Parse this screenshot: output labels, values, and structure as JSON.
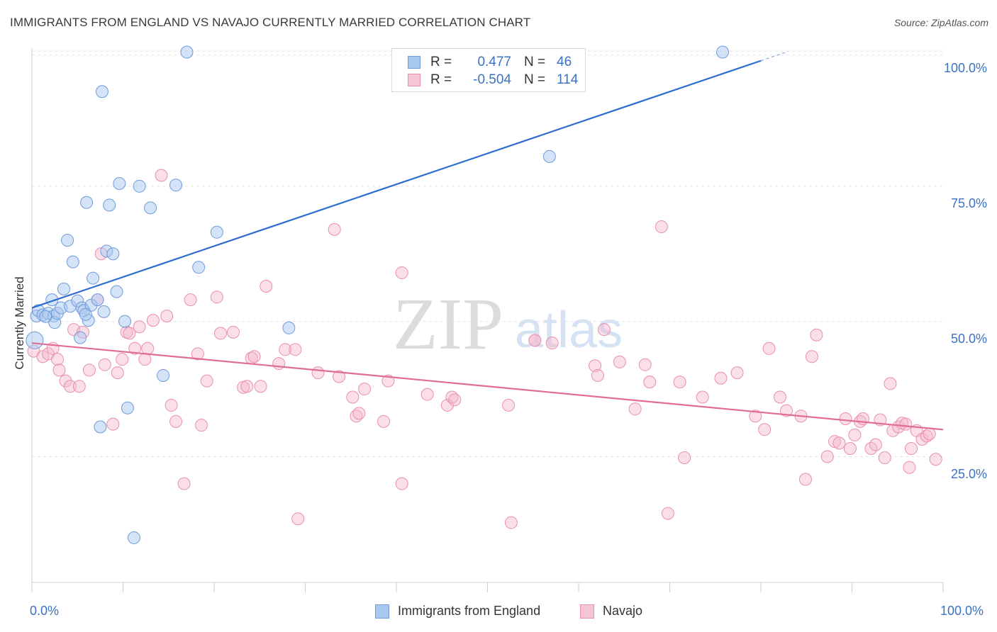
{
  "title": "IMMIGRANTS FROM ENGLAND VS NAVAJO CURRENTLY MARRIED CORRELATION CHART",
  "source": "Source: ZipAtlas.com",
  "watermark": {
    "zip": "ZIP",
    "atlas": "atlas"
  },
  "colors": {
    "blue_fill": "#a9c8f0",
    "blue_stroke": "#6f9bd8",
    "blue_line": "#2d6ccf",
    "pink_fill": "#f5b9cc",
    "pink_stroke": "#e890ae",
    "pink_line": "#e06c98",
    "tick_text": "#3a72c4",
    "grid": "#e3e3e3"
  },
  "legend_top": {
    "rows": [
      {
        "r_label": "R =",
        "r_value": "0.477",
        "n_label": "N =",
        "n_value": "46"
      },
      {
        "r_label": "R =",
        "r_value": "-0.504",
        "n_label": "N =",
        "n_value": "114"
      }
    ]
  },
  "legend_bottom": {
    "series1": "Immigrants from England",
    "series2": "Navajo"
  },
  "chart_data": {
    "type": "scatter",
    "title": "IMMIGRANTS FROM ENGLAND VS NAVAJO CURRENTLY MARRIED CORRELATION CHART",
    "xlabel": "",
    "ylabel": "Currently Married",
    "xlim": [
      0,
      100
    ],
    "ylim": [
      2,
      100
    ],
    "x_tick_labels": [
      "0.0%",
      "100.0%"
    ],
    "y_ticks": [
      25,
      50,
      75,
      100
    ],
    "y_tick_labels": [
      "25.0%",
      "50.0%",
      "75.0%",
      "100.0%"
    ],
    "grid": true,
    "legend_position": "bottom",
    "series": [
      {
        "name": "Immigrants from England",
        "stats": {
          "R": 0.477,
          "N": 46
        },
        "trend": {
          "x0": 0,
          "y0": 52.5,
          "x1": 80,
          "y1": 98.2,
          "dash_to_x": 83
        },
        "points": [
          [
            0.3,
            46.5
          ],
          [
            0.5,
            51
          ],
          [
            0.7,
            52
          ],
          [
            1.2,
            51.2
          ],
          [
            1.8,
            51.5
          ],
          [
            2.2,
            54
          ],
          [
            2.4,
            51
          ],
          [
            2.5,
            49.8
          ],
          [
            2.8,
            51.5
          ],
          [
            3.2,
            52.5
          ],
          [
            3.5,
            56
          ],
          [
            3.9,
            65
          ],
          [
            4.2,
            52.8
          ],
          [
            4.5,
            61
          ],
          [
            5,
            53.8
          ],
          [
            5.3,
            47
          ],
          [
            5.5,
            52.5
          ],
          [
            5.7,
            52
          ],
          [
            6,
            72
          ],
          [
            6.2,
            50.2
          ],
          [
            6.5,
            53
          ],
          [
            6.7,
            58
          ],
          [
            7.2,
            54
          ],
          [
            7.5,
            30.5
          ],
          [
            7.7,
            92.5
          ],
          [
            7.9,
            51.8
          ],
          [
            8.2,
            63
          ],
          [
            8.5,
            71.5
          ],
          [
            8.9,
            62.5
          ],
          [
            9.3,
            55.5
          ],
          [
            9.6,
            75.5
          ],
          [
            10.2,
            50
          ],
          [
            10.5,
            34
          ],
          [
            11.2,
            10
          ],
          [
            11.8,
            75
          ],
          [
            13,
            71
          ],
          [
            14.4,
            40
          ],
          [
            17,
            99.8
          ],
          [
            15.8,
            75.2
          ],
          [
            18.3,
            60
          ],
          [
            20.3,
            66.5
          ],
          [
            28.2,
            48.8
          ],
          [
            56.8,
            80.5
          ],
          [
            75.8,
            99.8
          ],
          [
            5.9,
            51.3
          ],
          [
            1.5,
            50.9
          ]
        ]
      },
      {
        "name": "Navajo",
        "stats": {
          "R": -0.504,
          "N": 114
        },
        "trend": {
          "x0": 0,
          "y0": 46,
          "x1": 100,
          "y1": 30
        },
        "points": [
          [
            0.2,
            44.5
          ],
          [
            1.2,
            43.5
          ],
          [
            1.8,
            44
          ],
          [
            2.3,
            45
          ],
          [
            2.8,
            43
          ],
          [
            3,
            41
          ],
          [
            3.7,
            39
          ],
          [
            4.2,
            38
          ],
          [
            4.6,
            48.5
          ],
          [
            5.2,
            38
          ],
          [
            5.6,
            48
          ],
          [
            6.3,
            41
          ],
          [
            7.2,
            54
          ],
          [
            7.6,
            62.5
          ],
          [
            8,
            42
          ],
          [
            8.9,
            31
          ],
          [
            9.4,
            40.5
          ],
          [
            9.9,
            43
          ],
          [
            10.4,
            48
          ],
          [
            10.7,
            47.8
          ],
          [
            11.3,
            45
          ],
          [
            11.8,
            49
          ],
          [
            12.4,
            43
          ],
          [
            12.7,
            45
          ],
          [
            13.3,
            50.2
          ],
          [
            14.2,
            77
          ],
          [
            14.8,
            51
          ],
          [
            15.3,
            34.5
          ],
          [
            15.8,
            31.5
          ],
          [
            16.7,
            20
          ],
          [
            17.4,
            54
          ],
          [
            18.2,
            44
          ],
          [
            18.6,
            30.8
          ],
          [
            19.2,
            39
          ],
          [
            20.3,
            54.5
          ],
          [
            20.7,
            47.8
          ],
          [
            22.1,
            48
          ],
          [
            23.2,
            37.8
          ],
          [
            24.1,
            43.2
          ],
          [
            24.4,
            43.5
          ],
          [
            25.1,
            38
          ],
          [
            25.7,
            56.5
          ],
          [
            27.1,
            42.2
          ],
          [
            27.8,
            44.8
          ],
          [
            28.9,
            44.8
          ],
          [
            29.2,
            13.5
          ],
          [
            31.4,
            40.5
          ],
          [
            33.2,
            67
          ],
          [
            33.7,
            39.8
          ],
          [
            35.2,
            36
          ],
          [
            35.6,
            32.5
          ],
          [
            35.9,
            33
          ],
          [
            36.5,
            37.5
          ],
          [
            38.6,
            31.5
          ],
          [
            39.1,
            39
          ],
          [
            40.6,
            59
          ],
          [
            40.6,
            20
          ],
          [
            43.4,
            36.5
          ],
          [
            45.6,
            34.5
          ],
          [
            46.1,
            36
          ],
          [
            46.4,
            35.5
          ],
          [
            52.3,
            34.5
          ],
          [
            52.6,
            12.8
          ],
          [
            55.2,
            46.5
          ],
          [
            57.1,
            46
          ],
          [
            61.8,
            41.8
          ],
          [
            62.1,
            40
          ],
          [
            62.8,
            48.5
          ],
          [
            64.5,
            42.5
          ],
          [
            66.2,
            33.8
          ],
          [
            67.3,
            42
          ],
          [
            67.8,
            38.8
          ],
          [
            69.1,
            67.5
          ],
          [
            69.8,
            14.5
          ],
          [
            71.1,
            38.8
          ],
          [
            71.6,
            24.8
          ],
          [
            73.6,
            36
          ],
          [
            75.6,
            39.5
          ],
          [
            77.4,
            40.5
          ],
          [
            79.4,
            32.5
          ],
          [
            80.4,
            30
          ],
          [
            80.9,
            45
          ],
          [
            82.1,
            36
          ],
          [
            82.8,
            33.5
          ],
          [
            84.4,
            32.5
          ],
          [
            84.9,
            20.8
          ],
          [
            85.6,
            43.5
          ],
          [
            86.1,
            47.5
          ],
          [
            87.3,
            25
          ],
          [
            88.1,
            27.8
          ],
          [
            88.6,
            27.5
          ],
          [
            89.3,
            32
          ],
          [
            89.8,
            26.5
          ],
          [
            90.3,
            29
          ],
          [
            90.9,
            31.5
          ],
          [
            91.2,
            32
          ],
          [
            92.1,
            26.5
          ],
          [
            92.6,
            27.2
          ],
          [
            93.1,
            31.8
          ],
          [
            93.6,
            24.8
          ],
          [
            94.2,
            38.5
          ],
          [
            94.5,
            29.8
          ],
          [
            95.1,
            30.5
          ],
          [
            95.5,
            31.2
          ],
          [
            95.9,
            31
          ],
          [
            96.3,
            23
          ],
          [
            96.5,
            26.5
          ],
          [
            97.1,
            29.8
          ],
          [
            97.7,
            28.2
          ],
          [
            98.2,
            28.8
          ],
          [
            98.5,
            29.2
          ],
          [
            99.2,
            24.5
          ],
          [
            55.2,
            46.5
          ],
          [
            23.6,
            38
          ]
        ]
      }
    ]
  }
}
